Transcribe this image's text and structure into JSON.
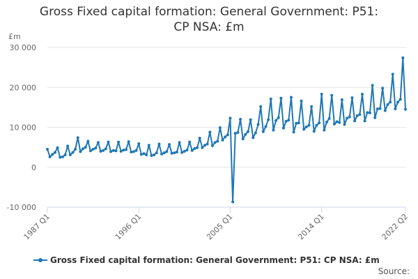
{
  "title_line1": "Gross Fixed capital formation: General Government: P51:",
  "title_line2": "CP NSA: £m",
  "source_label": "Source:",
  "colors": {
    "series": "#1f77b4",
    "grid": "#e6e6e6",
    "axis_text": "#666666"
  },
  "chart_data": {
    "type": "line",
    "title": "Gross Fixed capital formation: General Government: P51: CP NSA: £m",
    "ylabel": "£m",
    "xlabel": "",
    "ylim": [
      -10000,
      30000
    ],
    "yticks": [
      -10000,
      0,
      10000,
      20000,
      30000
    ],
    "ytick_labels": [
      "-10 000",
      "0",
      "10 000",
      "20 000",
      "30 000"
    ],
    "xlim": [
      1987.0,
      2022.25
    ],
    "xticks": [
      1987.0,
      1996.0,
      2005.0,
      2014.0,
      2022.25
    ],
    "xtick_labels": [
      "1987 Q1",
      "1996 Q1",
      "2005 Q1",
      "2014 Q1",
      "2022 Q2"
    ],
    "legend": "bottom-left",
    "series": [
      {
        "name": "Gross Fixed capital formation: General Government: P51: CP NSA: £m",
        "start": "1987 Q1",
        "frequency": "quarterly",
        "values": [
          4500,
          2600,
          3200,
          3700,
          4900,
          2500,
          2600,
          3100,
          5300,
          3100,
          3700,
          4500,
          7400,
          3900,
          4600,
          5000,
          6500,
          4100,
          4500,
          4800,
          6200,
          4000,
          4200,
          4600,
          6300,
          3900,
          4200,
          4100,
          6300,
          4000,
          4300,
          4400,
          6400,
          3800,
          3900,
          4200,
          5900,
          3200,
          3400,
          3100,
          5500,
          2900,
          3100,
          3600,
          5800,
          3300,
          3600,
          3900,
          5700,
          3500,
          3600,
          3800,
          6200,
          3700,
          4000,
          4300,
          6300,
          4200,
          4700,
          4900,
          7300,
          4900,
          5500,
          5800,
          8800,
          5400,
          6200,
          6500,
          9900,
          6800,
          7600,
          8100,
          12300,
          -8700,
          8500,
          8700,
          12000,
          7100,
          8200,
          8900,
          11900,
          7400,
          8600,
          10700,
          15200,
          8900,
          10200,
          11900,
          17100,
          9300,
          11700,
          12400,
          17300,
          9800,
          11500,
          11800,
          17500,
          8800,
          11000,
          11100,
          16600,
          9500,
          10100,
          10500,
          15200,
          9000,
          10500,
          11100,
          18300,
          9300,
          11300,
          12200,
          18000,
          10800,
          11400,
          11200,
          16900,
          10700,
          12300,
          12600,
          17400,
          11600,
          12900,
          13200,
          18300,
          11600,
          13700,
          13600,
          20500,
          12400,
          14600,
          14700,
          19800,
          14200,
          15700,
          16300,
          23300,
          14600,
          16300,
          17000,
          27400,
          14500
        ]
      }
    ]
  }
}
